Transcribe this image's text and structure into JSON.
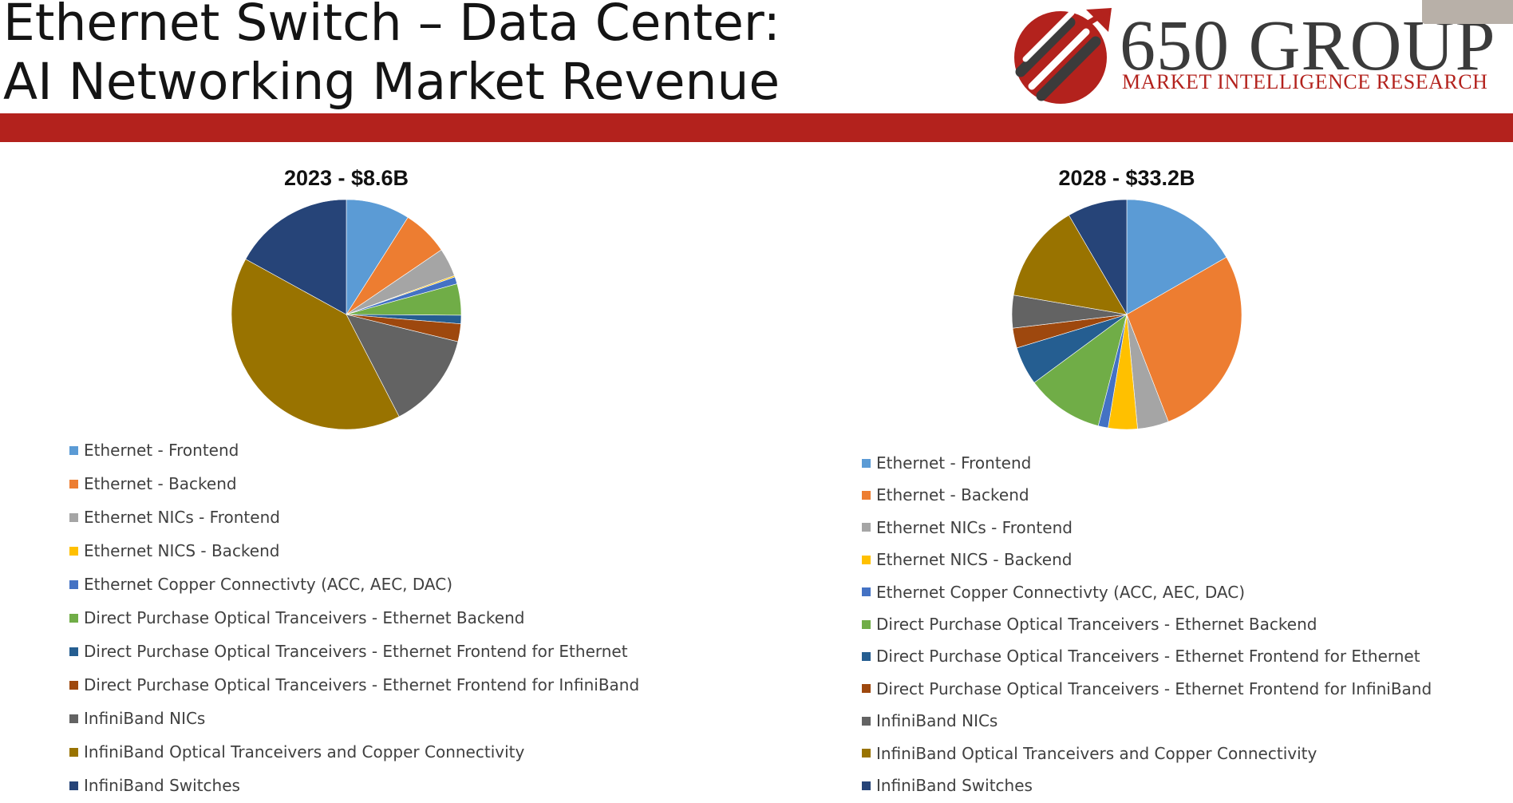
{
  "title": {
    "line1": "Ethernet Switch – Data Center:",
    "line2": "AI Networking Market Revenue"
  },
  "logo": {
    "name": "650 GROUP",
    "subtitle": "MARKET INTELLIGENCE RESEARCH",
    "colors": {
      "red": "#b3221d",
      "gray": "#3b3b3b"
    }
  },
  "band_color": "#b3221d",
  "legend_labels": [
    "Ethernet - Frontend",
    "Ethernet - Backend",
    "Ethernet NICs - Frontend",
    "Ethernet NICS - Backend",
    "Ethernet Copper Connectivty (ACC, AEC, DAC)",
    "Direct Purchase Optical Tranceivers - Ethernet Backend",
    "Direct Purchase Optical Tranceivers - Ethernet Frontend for Ethernet",
    "Direct Purchase Optical Tranceivers - Ethernet Frontend for InfiniBand",
    "InfiniBand NICs",
    "InfiniBand Optical Tranceivers and Copper Connectivity",
    "InfiniBand Switches"
  ],
  "series_colors": [
    "#5b9bd5",
    "#ed7d31",
    "#a5a5a5",
    "#ffc000",
    "#4472c4",
    "#70ad47",
    "#255e91",
    "#9e480e",
    "#636363",
    "#997300",
    "#264478"
  ],
  "chart_data": [
    {
      "type": "pie",
      "title": "2023 - $8.6B",
      "categories": [
        "Ethernet - Frontend",
        "Ethernet - Backend",
        "Ethernet NICs - Frontend",
        "Ethernet NICS - Backend",
        "Ethernet Copper Connectivty (ACC, AEC, DAC)",
        "Direct Purchase Optical Tranceivers - Ethernet Backend",
        "Direct Purchase Optical Tranceivers - Ethernet Frontend for Ethernet",
        "Direct Purchase Optical Tranceivers - Ethernet Frontend for InfiniBand",
        "InfiniBand NICs",
        "InfiniBand Optical Tranceivers and Copper Connectivity",
        "InfiniBand Switches"
      ],
      "values": [
        9.0,
        6.5,
        4.0,
        0.2,
        1.0,
        4.4,
        1.2,
        2.5,
        13.6,
        40.6,
        17.0
      ],
      "unit": "% of total",
      "legend_position": "bottom"
    },
    {
      "type": "pie",
      "title": "2028 - $33.2B",
      "categories": [
        "Ethernet - Frontend",
        "Ethernet - Backend",
        "Ethernet NICs - Frontend",
        "Ethernet NICS - Backend",
        "Ethernet Copper Connectivty (ACC, AEC, DAC)",
        "Direct Purchase Optical Tranceivers - Ethernet Backend",
        "Direct Purchase Optical Tranceivers - Ethernet Frontend for Ethernet",
        "Direct Purchase Optical Tranceivers - Ethernet Frontend for InfiniBand",
        "InfiniBand NICs",
        "InfiniBand Optical Tranceivers and Copper Connectivity",
        "InfiniBand Switches"
      ],
      "values": [
        16.7,
        27.4,
        4.4,
        4.1,
        1.4,
        10.9,
        5.4,
        2.8,
        4.6,
        13.9,
        8.4
      ],
      "unit": "% of total",
      "legend_position": "bottom"
    }
  ]
}
